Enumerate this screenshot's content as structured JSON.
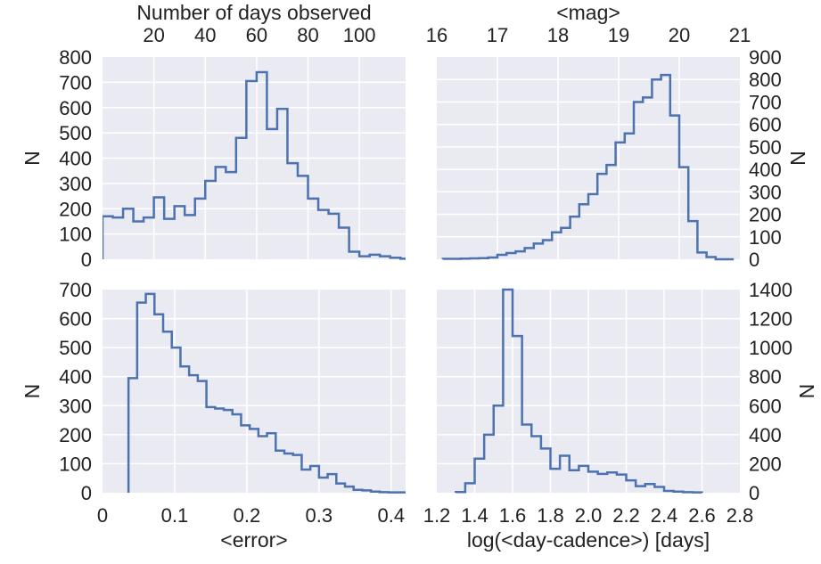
{
  "colors": {
    "panel_bg": "#eaeaf2",
    "grid": "#ffffff",
    "line": "#4c72b0",
    "text": "#222222"
  },
  "chart_data": [
    {
      "id": "days",
      "type": "histogram",
      "xlabel": "Number of days observed",
      "ylabel": "N",
      "xlim": [
        0,
        118
      ],
      "ylim": [
        0,
        800
      ],
      "xticks": [
        20,
        40,
        60,
        80,
        100
      ],
      "yticks": [
        0,
        100,
        200,
        300,
        400,
        500,
        600,
        700,
        800
      ],
      "grid": true,
      "bin_edges": [
        0,
        4,
        8,
        12,
        16,
        20,
        24,
        28,
        32,
        36,
        40,
        44,
        48,
        52,
        56,
        60,
        64,
        68,
        72,
        76,
        80,
        84,
        88,
        92,
        96,
        100,
        104,
        108,
        112,
        116,
        120
      ],
      "counts": [
        170,
        165,
        200,
        150,
        165,
        245,
        160,
        210,
        175,
        240,
        310,
        365,
        345,
        480,
        705,
        740,
        515,
        595,
        380,
        330,
        240,
        195,
        180,
        125,
        30,
        12,
        18,
        12,
        6,
        2
      ]
    },
    {
      "id": "mag",
      "type": "histogram",
      "xlabel": "<mag>",
      "ylabel": "N",
      "xlim": [
        16,
        21
      ],
      "ylim": [
        0,
        900
      ],
      "xticks": [
        16,
        17,
        18,
        19,
        20,
        21
      ],
      "yticks": [
        0,
        100,
        200,
        300,
        400,
        500,
        600,
        700,
        800,
        900
      ],
      "grid": true,
      "bin_edges": [
        16.1,
        16.25,
        16.4,
        16.55,
        16.7,
        16.85,
        17.0,
        17.15,
        17.3,
        17.45,
        17.6,
        17.75,
        17.9,
        18.05,
        18.2,
        18.35,
        18.5,
        18.65,
        18.8,
        18.95,
        19.1,
        19.25,
        19.4,
        19.55,
        19.7,
        19.85,
        20.0,
        20.15,
        20.3,
        20.45,
        20.6,
        20.75,
        20.9
      ],
      "counts": [
        2,
        2,
        3,
        4,
        5,
        8,
        20,
        28,
        35,
        50,
        70,
        85,
        120,
        140,
        190,
        245,
        290,
        380,
        420,
        520,
        560,
        700,
        720,
        800,
        820,
        640,
        410,
        170,
        30,
        10,
        0,
        0
      ]
    },
    {
      "id": "error",
      "type": "histogram",
      "xlabel": "<error>",
      "ylabel": "N",
      "xlim": [
        0,
        0.42
      ],
      "ylim": [
        0,
        700
      ],
      "xticks": [
        0,
        0.1,
        0.2,
        0.3,
        0.4
      ],
      "yticks": [
        0,
        100,
        200,
        300,
        400,
        500,
        600,
        700
      ],
      "grid": true,
      "bin_edges": [
        0.036,
        0.048,
        0.06,
        0.072,
        0.084,
        0.096,
        0.108,
        0.12,
        0.132,
        0.144,
        0.156,
        0.168,
        0.18,
        0.192,
        0.204,
        0.216,
        0.228,
        0.24,
        0.252,
        0.264,
        0.276,
        0.288,
        0.3,
        0.312,
        0.324,
        0.336,
        0.348,
        0.36,
        0.372,
        0.384,
        0.396,
        0.408,
        0.42
      ],
      "counts": [
        395,
        655,
        685,
        615,
        555,
        500,
        435,
        405,
        385,
        295,
        290,
        285,
        270,
        232,
        220,
        195,
        205,
        145,
        135,
        130,
        80,
        92,
        52,
        64,
        32,
        21,
        10,
        8,
        4,
        2,
        1,
        1
      ]
    },
    {
      "id": "cadence",
      "type": "histogram",
      "xlabel": "log(<day-cadence>) [days]",
      "ylabel": "N",
      "xlim": [
        1.2,
        2.8
      ],
      "ylim": [
        0,
        1400
      ],
      "xticks": [
        1.2,
        1.4,
        1.6,
        1.8,
        2.0,
        2.2,
        2.4,
        2.6,
        2.8
      ],
      "yticks": [
        0,
        200,
        400,
        600,
        800,
        1000,
        1200,
        1400
      ],
      "grid": true,
      "bin_edges": [
        1.3,
        1.35,
        1.4,
        1.45,
        1.5,
        1.55,
        1.6,
        1.65,
        1.7,
        1.75,
        1.8,
        1.85,
        1.9,
        1.95,
        2.0,
        2.05,
        2.1,
        2.15,
        2.2,
        2.25,
        2.3,
        2.35,
        2.4,
        2.45,
        2.5,
        2.55,
        2.6
      ],
      "counts": [
        5,
        65,
        235,
        400,
        600,
        1400,
        1080,
        470,
        390,
        305,
        165,
        255,
        155,
        185,
        145,
        130,
        140,
        125,
        85,
        45,
        60,
        40,
        12,
        8,
        4,
        2
      ]
    }
  ]
}
